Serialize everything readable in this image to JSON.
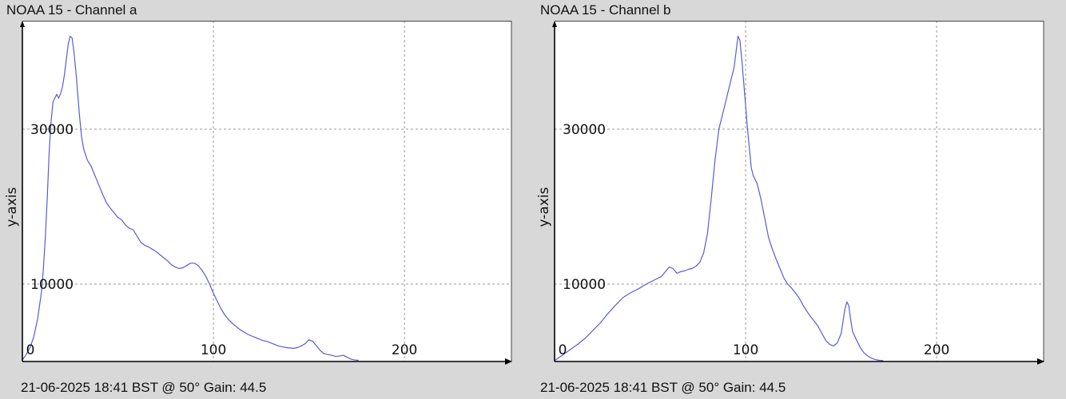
{
  "colors": {
    "background": "#d8d8d8",
    "plot_background": "#ffffff",
    "series_line": "#5b5bd6",
    "grid": "#9a9a9a",
    "axis": "#000000"
  },
  "chart_data": [
    {
      "type": "line",
      "title": "NOAA 15 - Channel a",
      "ylabel": "y-axis",
      "xlabel": "",
      "footer": "21-06-2025 18:41 BST @ 50° Gain: 44.5",
      "xlim": [
        0,
        256
      ],
      "ylim": [
        0,
        44000
      ],
      "xticks": [
        0,
        100,
        200
      ],
      "yticks": [
        10000,
        30000
      ],
      "grid": true,
      "series": [
        {
          "points": [
            [
              0,
              200
            ],
            [
              2,
              900
            ],
            [
              4,
              1800
            ],
            [
              6,
              3200
            ],
            [
              8,
              5500
            ],
            [
              10,
              9000
            ],
            [
              11,
              12000
            ],
            [
              12,
              16000
            ],
            [
              13,
              21000
            ],
            [
              14,
              27000
            ],
            [
              15,
              31000
            ],
            [
              16,
              33500
            ],
            [
              17,
              34000
            ],
            [
              18,
              34500
            ],
            [
              19,
              34000
            ],
            [
              20,
              34600
            ],
            [
              21,
              35500
            ],
            [
              22,
              37000
            ],
            [
              23,
              39000
            ],
            [
              24,
              41000
            ],
            [
              25,
              42000
            ],
            [
              26,
              41800
            ],
            [
              27,
              40000
            ],
            [
              28,
              37500
            ],
            [
              29,
              34500
            ],
            [
              30,
              31500
            ],
            [
              31,
              29000
            ],
            [
              32,
              27500
            ],
            [
              34,
              26000
            ],
            [
              36,
              25200
            ],
            [
              38,
              24000
            ],
            [
              40,
              22800
            ],
            [
              42,
              21600
            ],
            [
              44,
              20500
            ],
            [
              46,
              19800
            ],
            [
              48,
              19200
            ],
            [
              50,
              18600
            ],
            [
              52,
              18300
            ],
            [
              54,
              17600
            ],
            [
              56,
              17200
            ],
            [
              58,
              17000
            ],
            [
              60,
              16200
            ],
            [
              62,
              15400
            ],
            [
              64,
              15000
            ],
            [
              66,
              14800
            ],
            [
              68,
              14500
            ],
            [
              70,
              14200
            ],
            [
              72,
              13800
            ],
            [
              74,
              13400
            ],
            [
              76,
              13000
            ],
            [
              78,
              12500
            ],
            [
              80,
              12200
            ],
            [
              82,
              12000
            ],
            [
              84,
              12100
            ],
            [
              86,
              12400
            ],
            [
              88,
              12700
            ],
            [
              90,
              12700
            ],
            [
              92,
              12400
            ],
            [
              94,
              11800
            ],
            [
              96,
              11000
            ],
            [
              98,
              10000
            ],
            [
              100,
              8800
            ],
            [
              102,
              7800
            ],
            [
              104,
              6800
            ],
            [
              106,
              6000
            ],
            [
              108,
              5400
            ],
            [
              110,
              4900
            ],
            [
              112,
              4500
            ],
            [
              114,
              4100
            ],
            [
              116,
              3800
            ],
            [
              118,
              3500
            ],
            [
              120,
              3300
            ],
            [
              122,
              3100
            ],
            [
              124,
              2900
            ],
            [
              126,
              2700
            ],
            [
              128,
              2600
            ],
            [
              130,
              2400
            ],
            [
              132,
              2200
            ],
            [
              134,
              2000
            ],
            [
              136,
              1900
            ],
            [
              138,
              1800
            ],
            [
              140,
              1750
            ],
            [
              142,
              1700
            ],
            [
              144,
              1800
            ],
            [
              146,
              2000
            ],
            [
              148,
              2300
            ],
            [
              150,
              2800
            ],
            [
              152,
              2600
            ],
            [
              154,
              2000
            ],
            [
              156,
              1400
            ],
            [
              158,
              1000
            ],
            [
              160,
              900
            ],
            [
              162,
              800
            ],
            [
              164,
              650
            ],
            [
              166,
              700
            ],
            [
              168,
              800
            ],
            [
              170,
              550
            ],
            [
              172,
              300
            ],
            [
              174,
              200
            ],
            [
              176,
              150
            ]
          ]
        }
      ]
    },
    {
      "type": "line",
      "title": "NOAA 15 - Channel b",
      "ylabel": "y-axis",
      "xlabel": "",
      "footer": "21-06-2025 18:41 BST @ 50° Gain: 44.5",
      "xlim": [
        0,
        256
      ],
      "ylim": [
        0,
        44000
      ],
      "xticks": [
        0,
        100,
        200
      ],
      "yticks": [
        10000,
        30000
      ],
      "grid": true,
      "series": [
        {
          "points": [
            [
              0,
              100
            ],
            [
              4,
              800
            ],
            [
              8,
              1500
            ],
            [
              12,
              2200
            ],
            [
              16,
              3000
            ],
            [
              20,
              4000
            ],
            [
              24,
              5000
            ],
            [
              28,
              6200
            ],
            [
              32,
              7300
            ],
            [
              36,
              8300
            ],
            [
              40,
              8900
            ],
            [
              44,
              9400
            ],
            [
              48,
              10000
            ],
            [
              52,
              10500
            ],
            [
              56,
              11000
            ],
            [
              58,
              11600
            ],
            [
              60,
              12200
            ],
            [
              62,
              12000
            ],
            [
              64,
              11400
            ],
            [
              66,
              11600
            ],
            [
              68,
              11700
            ],
            [
              70,
              11900
            ],
            [
              72,
              12000
            ],
            [
              74,
              12300
            ],
            [
              76,
              12800
            ],
            [
              78,
              14000
            ],
            [
              80,
              16500
            ],
            [
              82,
              21000
            ],
            [
              84,
              26000
            ],
            [
              86,
              30000
            ],
            [
              88,
              32000
            ],
            [
              90,
              34000
            ],
            [
              92,
              36000
            ],
            [
              94,
              38000
            ],
            [
              95,
              40000
            ],
            [
              96,
              42000
            ],
            [
              97,
              41500
            ],
            [
              98,
              39000
            ],
            [
              99,
              36000
            ],
            [
              100,
              33000
            ],
            [
              101,
              30000
            ],
            [
              102,
              27500
            ],
            [
              103,
              25000
            ],
            [
              104,
              24000
            ],
            [
              106,
              23000
            ],
            [
              108,
              21000
            ],
            [
              110,
              18500
            ],
            [
              112,
              16000
            ],
            [
              114,
              14500
            ],
            [
              116,
              13200
            ],
            [
              118,
              12000
            ],
            [
              120,
              10800
            ],
            [
              122,
              10000
            ],
            [
              124,
              9500
            ],
            [
              126,
              8900
            ],
            [
              128,
              8200
            ],
            [
              130,
              7300
            ],
            [
              132,
              6500
            ],
            [
              134,
              5800
            ],
            [
              136,
              5200
            ],
            [
              138,
              4500
            ],
            [
              140,
              3600
            ],
            [
              142,
              2700
            ],
            [
              144,
              2200
            ],
            [
              146,
              2000
            ],
            [
              148,
              2400
            ],
            [
              150,
              3600
            ],
            [
              151,
              5200
            ],
            [
              152,
              6800
            ],
            [
              153,
              7700
            ],
            [
              154,
              7200
            ],
            [
              155,
              5400
            ],
            [
              156,
              3900
            ],
            [
              158,
              2800
            ],
            [
              160,
              1800
            ],
            [
              162,
              1100
            ],
            [
              164,
              700
            ],
            [
              166,
              400
            ],
            [
              168,
              250
            ],
            [
              170,
              150
            ],
            [
              172,
              100
            ]
          ]
        }
      ]
    }
  ]
}
